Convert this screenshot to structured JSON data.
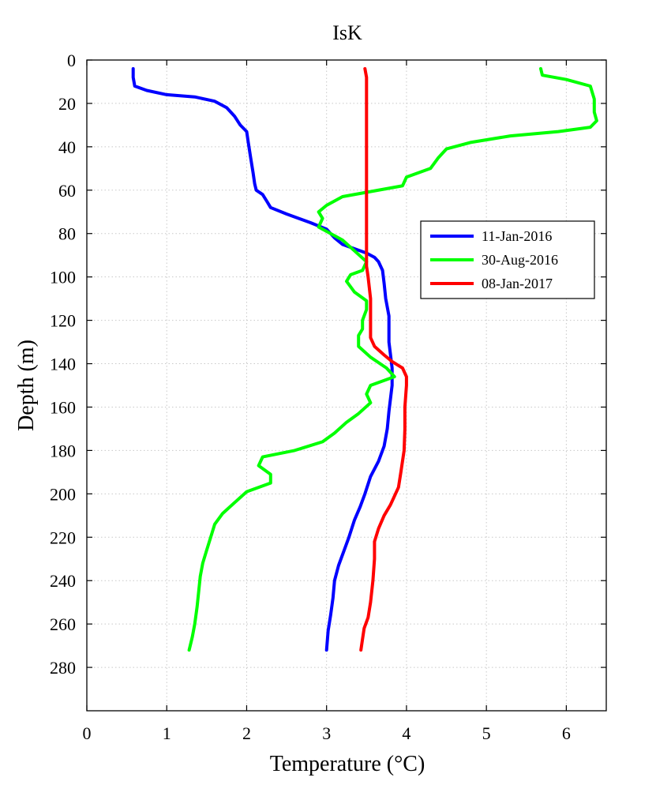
{
  "chart_data": {
    "type": "line",
    "title": "IsK",
    "xlabel": "Temperature (°C)",
    "ylabel": "Depth (m)",
    "xlim": [
      0,
      6.5
    ],
    "ylim": [
      0,
      300
    ],
    "y_inverted": true,
    "xticks": [
      0,
      1,
      2,
      3,
      4,
      5,
      6
    ],
    "yticks": [
      0,
      20,
      40,
      60,
      80,
      100,
      120,
      140,
      160,
      180,
      200,
      220,
      240,
      260,
      280
    ],
    "grid": true,
    "legend_position": "right",
    "series": [
      {
        "name": "11-Jan-2016",
        "color": "#0000ff",
        "points": [
          [
            0.58,
            4
          ],
          [
            0.58,
            8
          ],
          [
            0.6,
            12
          ],
          [
            0.75,
            14
          ],
          [
            1.0,
            16
          ],
          [
            1.35,
            17
          ],
          [
            1.6,
            19
          ],
          [
            1.75,
            22
          ],
          [
            1.85,
            26
          ],
          [
            1.92,
            30
          ],
          [
            2.0,
            33
          ],
          [
            2.02,
            38
          ],
          [
            2.05,
            45
          ],
          [
            2.08,
            52
          ],
          [
            2.1,
            57
          ],
          [
            2.12,
            60
          ],
          [
            2.2,
            62
          ],
          [
            2.25,
            65
          ],
          [
            2.3,
            68
          ],
          [
            2.5,
            71
          ],
          [
            2.8,
            75
          ],
          [
            3.0,
            78
          ],
          [
            3.1,
            82
          ],
          [
            3.2,
            85
          ],
          [
            3.5,
            89
          ],
          [
            3.6,
            91
          ],
          [
            3.65,
            93
          ],
          [
            3.7,
            97
          ],
          [
            3.72,
            103
          ],
          [
            3.74,
            110
          ],
          [
            3.78,
            118
          ],
          [
            3.78,
            124
          ],
          [
            3.78,
            130
          ],
          [
            3.8,
            136
          ],
          [
            3.82,
            142
          ],
          [
            3.82,
            150
          ],
          [
            3.8,
            156
          ],
          [
            3.78,
            162
          ],
          [
            3.76,
            170
          ],
          [
            3.72,
            178
          ],
          [
            3.65,
            185
          ],
          [
            3.55,
            192
          ],
          [
            3.48,
            200
          ],
          [
            3.42,
            206
          ],
          [
            3.35,
            212
          ],
          [
            3.28,
            220
          ],
          [
            3.22,
            226
          ],
          [
            3.15,
            233
          ],
          [
            3.1,
            240
          ],
          [
            3.08,
            248
          ],
          [
            3.05,
            256
          ],
          [
            3.02,
            263
          ],
          [
            3.0,
            272
          ]
        ]
      },
      {
        "name": "30-Aug-2016",
        "color": "#00ff00",
        "points": [
          [
            5.68,
            4
          ],
          [
            5.7,
            7
          ],
          [
            6.0,
            9
          ],
          [
            6.3,
            12
          ],
          [
            6.35,
            18
          ],
          [
            6.35,
            24
          ],
          [
            6.38,
            28
          ],
          [
            6.3,
            31
          ],
          [
            5.9,
            33
          ],
          [
            5.3,
            35
          ],
          [
            4.8,
            38
          ],
          [
            4.5,
            41
          ],
          [
            4.4,
            45
          ],
          [
            4.3,
            50
          ],
          [
            4.0,
            54
          ],
          [
            3.95,
            58
          ],
          [
            3.5,
            61
          ],
          [
            3.2,
            63
          ],
          [
            3.0,
            67
          ],
          [
            2.9,
            70
          ],
          [
            2.95,
            73
          ],
          [
            2.9,
            77
          ],
          [
            3.05,
            80
          ],
          [
            3.2,
            83
          ],
          [
            3.35,
            88
          ],
          [
            3.5,
            93
          ],
          [
            3.45,
            97
          ],
          [
            3.3,
            99
          ],
          [
            3.25,
            102
          ],
          [
            3.35,
            107
          ],
          [
            3.5,
            111
          ],
          [
            3.5,
            115
          ],
          [
            3.45,
            120
          ],
          [
            3.45,
            124
          ],
          [
            3.4,
            127
          ],
          [
            3.4,
            132
          ],
          [
            3.55,
            137
          ],
          [
            3.75,
            142
          ],
          [
            3.85,
            146
          ],
          [
            3.55,
            150
          ],
          [
            3.5,
            154
          ],
          [
            3.55,
            158
          ],
          [
            3.4,
            163
          ],
          [
            3.25,
            167
          ],
          [
            3.1,
            172
          ],
          [
            2.95,
            176
          ],
          [
            2.6,
            180
          ],
          [
            2.2,
            183
          ],
          [
            2.15,
            187
          ],
          [
            2.3,
            191
          ],
          [
            2.3,
            195
          ],
          [
            2.0,
            199
          ],
          [
            1.85,
            204
          ],
          [
            1.7,
            209
          ],
          [
            1.6,
            214
          ],
          [
            1.55,
            220
          ],
          [
            1.5,
            226
          ],
          [
            1.45,
            232
          ],
          [
            1.42,
            238
          ],
          [
            1.4,
            245
          ],
          [
            1.38,
            252
          ],
          [
            1.35,
            260
          ],
          [
            1.32,
            266
          ],
          [
            1.28,
            272
          ]
        ]
      },
      {
        "name": "08-Jan-2017",
        "color": "#ff0000",
        "points": [
          [
            3.48,
            4
          ],
          [
            3.5,
            8
          ],
          [
            3.5,
            15
          ],
          [
            3.5,
            25
          ],
          [
            3.5,
            35
          ],
          [
            3.5,
            45
          ],
          [
            3.5,
            55
          ],
          [
            3.5,
            65
          ],
          [
            3.5,
            75
          ],
          [
            3.5,
            85
          ],
          [
            3.5,
            95
          ],
          [
            3.52,
            100
          ],
          [
            3.55,
            110
          ],
          [
            3.55,
            120
          ],
          [
            3.55,
            128
          ],
          [
            3.6,
            132
          ],
          [
            3.72,
            136
          ],
          [
            3.82,
            139
          ],
          [
            3.95,
            142
          ],
          [
            4.0,
            146
          ],
          [
            4.0,
            150
          ],
          [
            3.98,
            160
          ],
          [
            3.98,
            170
          ],
          [
            3.97,
            180
          ],
          [
            3.93,
            190
          ],
          [
            3.9,
            197
          ],
          [
            3.8,
            205
          ],
          [
            3.72,
            210
          ],
          [
            3.65,
            216
          ],
          [
            3.6,
            222
          ],
          [
            3.6,
            230
          ],
          [
            3.58,
            240
          ],
          [
            3.55,
            250
          ],
          [
            3.52,
            257
          ],
          [
            3.47,
            262
          ],
          [
            3.45,
            267
          ],
          [
            3.43,
            272
          ]
        ]
      }
    ]
  }
}
